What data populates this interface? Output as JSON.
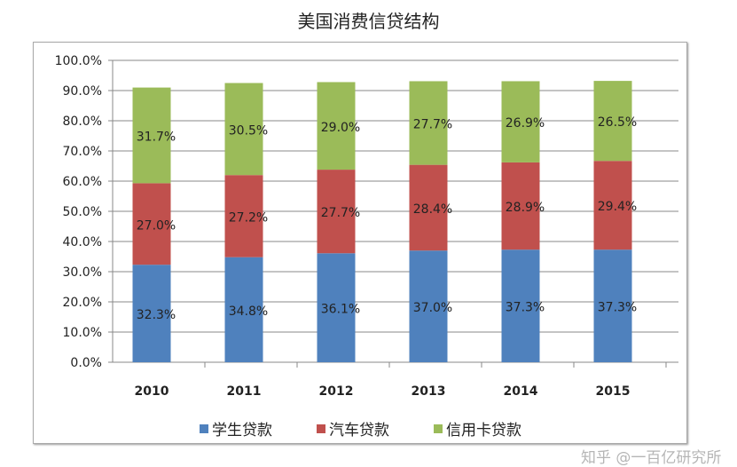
{
  "chart_data": {
    "type": "bar",
    "stacked": true,
    "title": "美国消费信贷结构",
    "categories": [
      "2010",
      "2011",
      "2012",
      "2013",
      "2014",
      "2015"
    ],
    "series": [
      {
        "name": "学生贷款",
        "color": "#4f81bd",
        "values": [
          32.3,
          34.8,
          36.1,
          37.0,
          37.3,
          37.3
        ],
        "labels": [
          "32.3%",
          "34.8%",
          "36.1%",
          "37.0%",
          "37.3%",
          "37.3%"
        ]
      },
      {
        "name": "汽车贷款",
        "color": "#c0504d",
        "values": [
          27.0,
          27.2,
          27.7,
          28.4,
          28.9,
          29.4
        ],
        "labels": [
          "27.0%",
          "27.2%",
          "27.7%",
          "28.4%",
          "28.9%",
          "29.4%"
        ]
      },
      {
        "name": "信用卡贷款",
        "color": "#9bbb59",
        "values": [
          31.7,
          30.5,
          29.0,
          27.7,
          26.9,
          26.5
        ],
        "labels": [
          "31.7%",
          "30.5%",
          "29.0%",
          "27.7%",
          "26.9%",
          "26.5%"
        ]
      }
    ],
    "ylim": [
      0,
      100
    ],
    "yticks": [
      "0.0%",
      "10.0%",
      "20.0%",
      "30.0%",
      "40.0%",
      "50.0%",
      "60.0%",
      "70.0%",
      "80.0%",
      "90.0%",
      "100.0%"
    ],
    "grid": true,
    "legend": "bottom"
  },
  "watermark": "知乎 @一百亿研究所"
}
